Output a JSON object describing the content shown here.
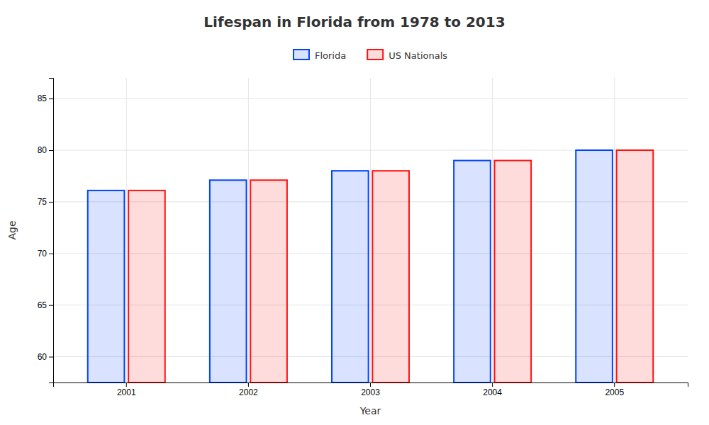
{
  "chart_data": {
    "type": "bar",
    "title": "Lifespan in Florida from 1978 to 2013",
    "x_label": "Year",
    "y_label": "Age",
    "categories": [
      "2001",
      "2002",
      "2003",
      "2004",
      "2005"
    ],
    "series": [
      {
        "name": "Florida",
        "color": "#0044ff",
        "values": [
          76.1,
          77.1,
          78.0,
          79.0,
          80.0
        ]
      },
      {
        "name": "US Nationals",
        "color": "#ff1111",
        "values": [
          76.1,
          77.1,
          78.0,
          79.0,
          80.0
        ]
      }
    ],
    "ylim": [
      57.5,
      87
    ],
    "yticks": [
      60,
      65,
      70,
      75,
      80,
      85
    ],
    "grid": true,
    "legend": "top"
  }
}
